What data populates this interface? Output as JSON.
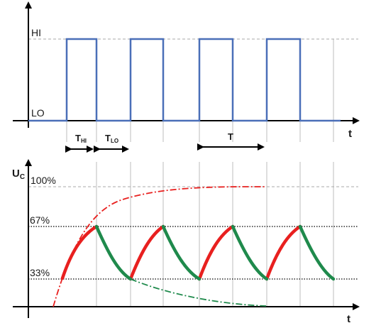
{
  "top": {
    "hi_label": "HI",
    "lo_label": "LO",
    "t_axis_label": "t",
    "thi_label": "T",
    "thi_sub": "HI",
    "tlo_label": "T",
    "tlo_sub": "LO",
    "period_label": "T"
  },
  "bottom": {
    "uc_label": "U",
    "uc_sub": "C",
    "pct100": "100%",
    "pct67": "67%",
    "pct33": "33%",
    "t_axis_label": "t"
  },
  "colors": {
    "square_wave": "#4a6fb8",
    "charge": "#e8201f",
    "discharge": "#1f8a4c",
    "axis": "#000000",
    "grid": "#bdbdbd"
  }
}
